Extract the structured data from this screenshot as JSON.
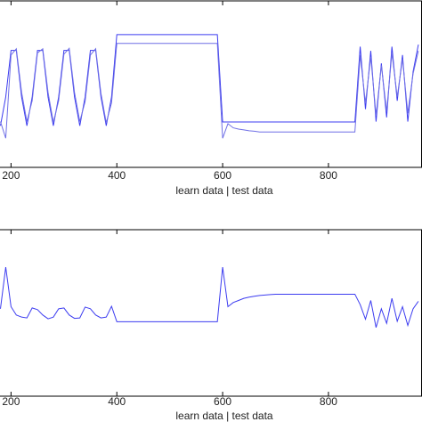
{
  "chart_data": [
    {
      "type": "line",
      "xlabel": "learn data | test data",
      "x": [
        180,
        190,
        200,
        210,
        220,
        230,
        240,
        250,
        260,
        270,
        280,
        290,
        300,
        310,
        320,
        330,
        340,
        350,
        360,
        370,
        380,
        390,
        400,
        410,
        420,
        430,
        440,
        450,
        460,
        470,
        480,
        490,
        500,
        510,
        520,
        530,
        540,
        550,
        560,
        570,
        580,
        590,
        600,
        610,
        620,
        630,
        640,
        650,
        660,
        670,
        680,
        690,
        700,
        710,
        720,
        730,
        740,
        750,
        760,
        770,
        780,
        790,
        800,
        810,
        820,
        830,
        840,
        850,
        860,
        870,
        880,
        890,
        900,
        910,
        920,
        930,
        940,
        950,
        960,
        970
      ],
      "series": [
        {
          "color": "#3c3cf0",
          "values": [
            -1,
            -0.31,
            0.81,
            0.81,
            -0.31,
            -1,
            -0.31,
            0.81,
            0.81,
            -0.31,
            -1,
            -0.31,
            0.81,
            0.81,
            -0.31,
            -1,
            -0.31,
            0.81,
            0.81,
            -0.31,
            -1,
            -0.31,
            1.19,
            1.19,
            1.19,
            1.19,
            1.19,
            1.19,
            1.19,
            1.19,
            1.19,
            1.19,
            1.19,
            1.19,
            1.19,
            1.19,
            1.19,
            1.19,
            1.19,
            1.19,
            1.19,
            1.19,
            -0.91,
            -0.91,
            -0.91,
            -0.91,
            -0.91,
            -0.91,
            -0.91,
            -0.91,
            -0.91,
            -0.91,
            -0.91,
            -0.91,
            -0.91,
            -0.91,
            -0.91,
            -0.91,
            -0.91,
            -0.91,
            -0.91,
            -0.91,
            -0.91,
            -0.91,
            -0.91,
            -0.91,
            -0.91,
            -0.91,
            0.9,
            -0.6,
            0.8,
            -0.9,
            0.5,
            -0.8,
            0.9,
            -0.4,
            0.7,
            -0.9,
            0.3,
            0.95
          ]
        },
        {
          "color": "#6f6fe6",
          "values": [
            -0.9,
            -1.3,
            0.7,
            0.85,
            -0.2,
            -0.9,
            -0.4,
            0.75,
            0.85,
            -0.2,
            -0.92,
            -0.4,
            0.72,
            0.86,
            -0.2,
            -0.9,
            -0.42,
            0.7,
            0.85,
            -0.22,
            -0.93,
            -0.45,
            0.98,
            0.98,
            0.98,
            0.98,
            0.98,
            0.98,
            0.98,
            0.98,
            0.98,
            0.98,
            0.98,
            0.98,
            0.98,
            0.98,
            0.98,
            0.98,
            0.98,
            0.98,
            0.98,
            0.98,
            -1.3,
            -0.95,
            -1.05,
            -1.08,
            -1.1,
            -1.12,
            -1.13,
            -1.15,
            -1.15,
            -1.15,
            -1.15,
            -1.15,
            -1.15,
            -1.15,
            -1.15,
            -1.15,
            -1.15,
            -1.15,
            -1.15,
            -1.15,
            -1.15,
            -1.15,
            -1.15,
            -1.15,
            -1.15,
            -1.15,
            0.7,
            -0.45,
            0.65,
            -0.75,
            0.45,
            -0.65,
            0.75,
            -0.3,
            0.6,
            -0.7,
            0.25,
            0.8
          ]
        }
      ],
      "xlim": [
        180,
        976
      ],
      "ylim": [
        -2,
        2
      ],
      "xticks": [
        200,
        400,
        600,
        800
      ]
    },
    {
      "type": "line",
      "xlabel": "learn data | test data",
      "x": [
        180,
        190,
        200,
        210,
        220,
        230,
        240,
        250,
        260,
        270,
        280,
        290,
        300,
        310,
        320,
        330,
        340,
        350,
        360,
        370,
        380,
        390,
        400,
        410,
        420,
        430,
        440,
        450,
        460,
        470,
        480,
        490,
        500,
        510,
        520,
        530,
        540,
        550,
        560,
        570,
        580,
        590,
        600,
        610,
        620,
        630,
        640,
        650,
        660,
        670,
        680,
        690,
        700,
        710,
        720,
        730,
        740,
        750,
        760,
        770,
        780,
        790,
        800,
        810,
        820,
        830,
        840,
        850,
        860,
        870,
        880,
        890,
        900,
        910,
        920,
        930,
        940,
        950,
        960,
        970
      ],
      "series": [
        {
          "color": "#3c3cf0",
          "values": [
            0.1,
            1.1,
            0.15,
            -0.05,
            -0.1,
            -0.12,
            0.12,
            0.08,
            -0.05,
            -0.14,
            -0.1,
            0.1,
            0.12,
            -0.05,
            -0.13,
            -0.12,
            0.14,
            0.1,
            -0.05,
            -0.12,
            -0.1,
            0.16,
            -0.21,
            -0.21,
            -0.21,
            -0.21,
            -0.21,
            -0.21,
            -0.21,
            -0.21,
            -0.21,
            -0.21,
            -0.21,
            -0.21,
            -0.21,
            -0.21,
            -0.21,
            -0.21,
            -0.21,
            -0.21,
            -0.21,
            -0.21,
            1.1,
            0.15,
            0.25,
            0.3,
            0.35,
            0.38,
            0.4,
            0.42,
            0.43,
            0.44,
            0.45,
            0.45,
            0.45,
            0.45,
            0.45,
            0.45,
            0.45,
            0.45,
            0.45,
            0.45,
            0.45,
            0.45,
            0.45,
            0.45,
            0.45,
            0.45,
            0.2,
            -0.15,
            0.3,
            -0.35,
            0.1,
            -0.25,
            0.35,
            -0.2,
            0.15,
            -0.3,
            0.1,
            0.28
          ]
        }
      ],
      "xlim": [
        180,
        976
      ],
      "ylim": [
        -2,
        2
      ],
      "xticks": [
        200,
        400,
        600,
        800
      ]
    }
  ]
}
